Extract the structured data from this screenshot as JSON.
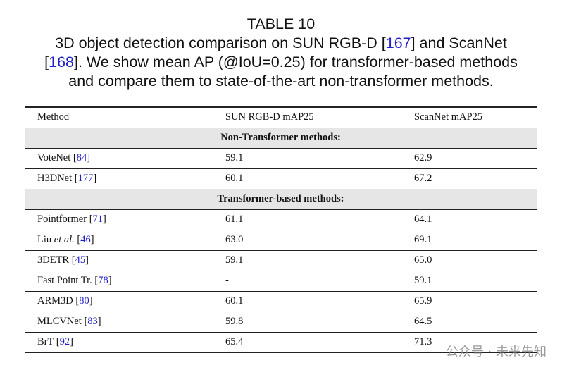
{
  "caption": {
    "label": "TABLE 10",
    "lines": [
      [
        {
          "t": "3D object detection comparison on SUN RGB-D ["
        },
        {
          "t": "167",
          "ref": true
        },
        {
          "t": "] and ScanNet"
        }
      ],
      [
        {
          "t": "["
        },
        {
          "t": "168",
          "ref": true
        },
        {
          "t": "]. We show mean AP (@IoU=0.25) for transformer-based methods"
        }
      ],
      [
        {
          "t": "and compare them to state-of-the-art non-transformer methods."
        }
      ]
    ]
  },
  "table": {
    "header": [
      "Method",
      "SUN RGB-D mAP25",
      "ScanNet mAP25"
    ],
    "rows": [
      {
        "group": "Non-Transformer methods:"
      },
      {
        "method": [
          {
            "t": "VoteNet ["
          },
          {
            "t": "84",
            "ref": true
          },
          {
            "t": "]"
          }
        ],
        "sun": "59.1",
        "scannet": "62.9"
      },
      {
        "method": [
          {
            "t": "H3DNet ["
          },
          {
            "t": "177",
            "ref": true
          },
          {
            "t": "]"
          }
        ],
        "sun": "60.1",
        "scannet": "67.2"
      },
      {
        "group": "Transformer-based methods:"
      },
      {
        "method": [
          {
            "t": "Pointformer ["
          },
          {
            "t": "71",
            "ref": true
          },
          {
            "t": "]"
          }
        ],
        "sun": "61.1",
        "scannet": "64.1"
      },
      {
        "method": [
          {
            "t": "Liu "
          },
          {
            "t": "et al.",
            "italic": true
          },
          {
            "t": " ["
          },
          {
            "t": "46",
            "ref": true
          },
          {
            "t": "]"
          }
        ],
        "sun": "63.0",
        "scannet": "69.1"
      },
      {
        "method": [
          {
            "t": "3DETR ["
          },
          {
            "t": "45",
            "ref": true
          },
          {
            "t": "]"
          }
        ],
        "sun": "59.1",
        "scannet": "65.0"
      },
      {
        "method": [
          {
            "t": "Fast Point Tr. ["
          },
          {
            "t": "78",
            "ref": true
          },
          {
            "t": "]"
          }
        ],
        "sun": "-",
        "scannet": "59.1"
      },
      {
        "method": [
          {
            "t": "ARM3D ["
          },
          {
            "t": "80",
            "ref": true
          },
          {
            "t": "]"
          }
        ],
        "sun": "60.1",
        "scannet": "65.9"
      },
      {
        "method": [
          {
            "t": "MLCVNet ["
          },
          {
            "t": "83",
            "ref": true
          },
          {
            "t": "]"
          }
        ],
        "sun": "59.8",
        "scannet": "64.5"
      },
      {
        "method": [
          {
            "t": "BrT ["
          },
          {
            "t": "92",
            "ref": true
          },
          {
            "t": "]"
          }
        ],
        "sun": "65.4",
        "scannet": "71.3"
      }
    ]
  },
  "watermark": "公众号 · 未来先知"
}
